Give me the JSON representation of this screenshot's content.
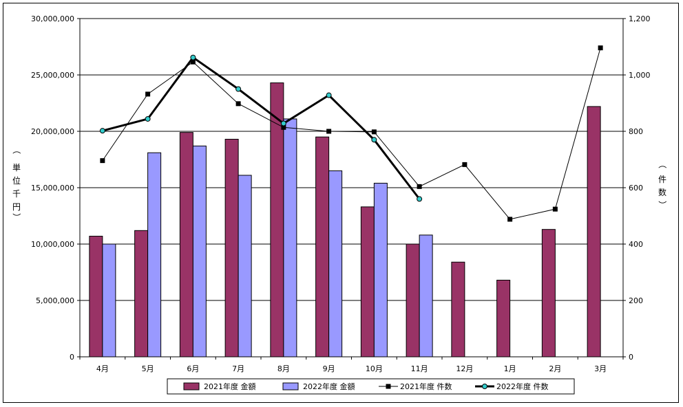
{
  "chart_data": {
    "type": "bar",
    "categories": [
      "4月",
      "5月",
      "6月",
      "7月",
      "8月",
      "9月",
      "10月",
      "11月",
      "12月",
      "1月",
      "2月",
      "3月"
    ],
    "y_left": {
      "label": [
        "単",
        "位",
        "千",
        "円"
      ],
      "paren_open": "（",
      "paren_close": "）",
      "ylim": [
        0,
        30000000
      ],
      "ticks": [
        0,
        5000000,
        10000000,
        15000000,
        20000000,
        25000000,
        30000000
      ],
      "tick_labels": [
        "0",
        "5,000,000",
        "10,000,000",
        "15,000,000",
        "20,000,000",
        "25,000,000",
        "30,000,000"
      ]
    },
    "y_right": {
      "label": [
        "件",
        "数"
      ],
      "paren_open": "（",
      "paren_close": "）",
      "ylim": [
        0,
        1200
      ],
      "ticks": [
        0,
        200,
        400,
        600,
        800,
        1000,
        1200
      ],
      "tick_labels": [
        "0",
        "200",
        "400",
        "600",
        "800",
        "1,000",
        "1,200"
      ]
    },
    "series": [
      {
        "name": "2021年度 金額",
        "kind": "bar",
        "axis": "left",
        "color": "#993366",
        "values": [
          10700000,
          11200000,
          19900000,
          19300000,
          24300000,
          19500000,
          13300000,
          10000000,
          8400000,
          6800000,
          11300000,
          22200000
        ]
      },
      {
        "name": "2022年度 金額",
        "kind": "bar",
        "axis": "left",
        "color": "#9999ff",
        "values": [
          10000000,
          18100000,
          18700000,
          16100000,
          21100000,
          16500000,
          15400000,
          10800000,
          null,
          null,
          null,
          null
        ]
      },
      {
        "name": "2021年度 件数",
        "kind": "line",
        "axis": "right",
        "color": "#000000",
        "marker": "square",
        "values": [
          696,
          932,
          1046,
          898,
          814,
          800,
          798,
          604,
          682,
          488,
          524,
          1096
        ]
      },
      {
        "name": "2022年度 件数",
        "kind": "line",
        "axis": "right",
        "color": "#000000",
        "marker_color": "#33cccc",
        "marker": "circle",
        "values": [
          802,
          844,
          1062,
          950,
          828,
          928,
          770,
          560,
          null,
          null,
          null,
          null
        ]
      }
    ],
    "grid": true,
    "legend_position": "bottom"
  }
}
